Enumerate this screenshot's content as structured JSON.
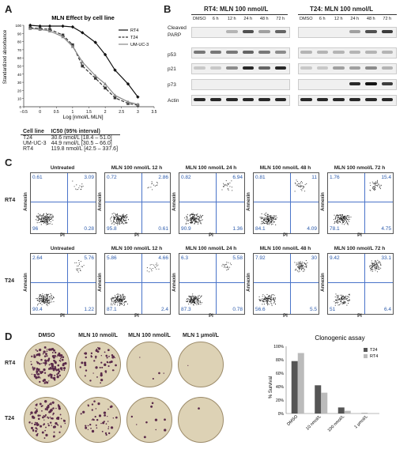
{
  "panelA": {
    "label": "A",
    "chart_data": {
      "type": "line",
      "title": "MLN Effect by cell line",
      "xlabel": "Log [nmol/L MLN]",
      "ylabel": "Standardized absorbance",
      "xlim": [
        -0.5,
        3.5
      ],
      "ylim": [
        0,
        100
      ],
      "xticks": [
        "−0.5",
        "0",
        "0.5",
        "1",
        "1.5",
        "2",
        "2.5",
        "3",
        "3.5"
      ],
      "yticks": [
        "0",
        "10",
        "20",
        "30",
        "40",
        "50",
        "60",
        "70",
        "80",
        "90",
        "100"
      ],
      "x": [
        -0.3,
        0,
        0.3,
        0.7,
        1,
        1.3,
        1.7,
        2,
        2.3,
        2.7,
        3
      ],
      "series": [
        {
          "name": "RT4",
          "color": "#111111",
          "dash": "solid",
          "marker": "diamond",
          "values": [
            100,
            99,
            99,
            99,
            98,
            91,
            79,
            64,
            45,
            28,
            12
          ]
        },
        {
          "name": "T24",
          "color": "#333333",
          "dash": "dashed",
          "marker": "square",
          "values": [
            97,
            96,
            95,
            88,
            76,
            50,
            35,
            23,
            11,
            4,
            2
          ]
        },
        {
          "name": "UM-UC-3",
          "color": "#888888",
          "dash": "solid",
          "marker": "triangle",
          "values": [
            96,
            95,
            93,
            86,
            74,
            55,
            38,
            28,
            14,
            6,
            3
          ]
        }
      ],
      "legend": "top-right",
      "grid": false
    },
    "table": {
      "headers": [
        "Cell line",
        "IC50 (95% interval)"
      ],
      "rows": [
        [
          "T24",
          "30.6 nmol/L [18.4 – 51.0]"
        ],
        [
          "UM-UC-3",
          "44.9 nmol/L [30.5 – 66.0]"
        ],
        [
          "RT4",
          "119.8 nmol/L [42.5 – 337.6]"
        ]
      ]
    }
  },
  "panelB": {
    "label": "B",
    "group1": "RT4: MLN 100 nmol/L",
    "group2": "T24: MLN 100 nmol/L",
    "lanes": [
      "DMSO",
      "6 h",
      "12 h",
      "24 h",
      "48 h",
      "72 h"
    ],
    "proteins": [
      "Cleaved PARP",
      "p53",
      "p21",
      "p73",
      "Actin"
    ],
    "cleaved_label": "Cleaved",
    "parp_label": "PARP"
  },
  "panelC": {
    "label": "C",
    "xlabel": "PI",
    "ylabel": "Annexin",
    "conditions": [
      "Untreated",
      "MLN 100 nmol/L 12 h",
      "MLN 100 nmol/L 24 h",
      "MLN 100 nmol/L 48 h",
      "MLN 100 nmol/L 72 h"
    ],
    "rows": [
      {
        "name": "RT4",
        "quadrants": [
          [
            "0.61",
            "3.09",
            "96",
            "0.28"
          ],
          [
            "0.72",
            "2.86",
            "95.8",
            "0.61"
          ],
          [
            "0.82",
            "6.94",
            "90.9",
            "1.36"
          ],
          [
            "0.81",
            "11",
            "84.1",
            "4.09"
          ],
          [
            "1.76",
            "15.4",
            "78.1",
            "4.75"
          ]
        ]
      },
      {
        "name": "T24",
        "quadrants": [
          [
            "2.64",
            "5.76",
            "90.4",
            "1.22"
          ],
          [
            "5.86",
            "4.66",
            "87.1",
            "2.4"
          ],
          [
            "6.3",
            "5.58",
            "87.3",
            "0.78"
          ],
          [
            "7.92",
            "30",
            "56.6",
            "5.5"
          ],
          [
            "9.42",
            "33.1",
            "51",
            "6.4"
          ]
        ]
      }
    ]
  },
  "panelD": {
    "label": "D",
    "columns": [
      "DMSO",
      "MLN 10 nmol/L",
      "MLN 100 nmol/L",
      "MLN 1 μmol/L"
    ],
    "rows": [
      "RT4",
      "T24"
    ],
    "chart_data": {
      "type": "bar",
      "title": "Clonogenic assay",
      "ylabel": "% Survival",
      "categories": [
        "DMSO",
        "10 nmol/L",
        "100 nmol/L",
        "1 μmol/L"
      ],
      "ylim": [
        0,
        100
      ],
      "yticks": [
        "0%",
        "20%",
        "40%",
        "60%",
        "80%",
        "100%"
      ],
      "series": [
        {
          "name": "T24",
          "color": "#555555",
          "values": [
            78,
            42,
            9,
            0.5
          ]
        },
        {
          "name": "RT4",
          "color": "#bbbbbb",
          "values": [
            90,
            31,
            4,
            0.3
          ]
        }
      ],
      "legend": "top-right"
    }
  }
}
